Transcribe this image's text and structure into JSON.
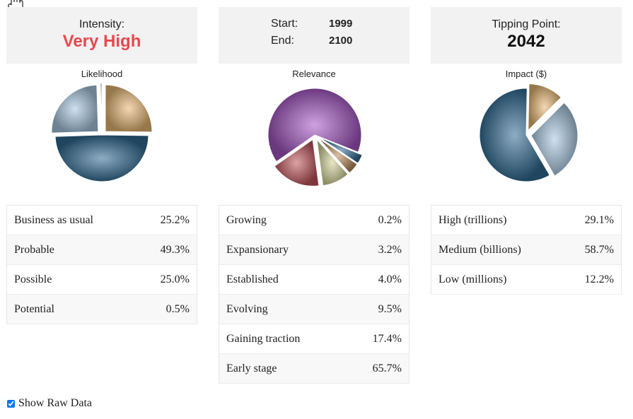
{
  "cards": {
    "intensity": {
      "label": "Intensity:",
      "value": "Very High",
      "value_color": "#e8484d"
    },
    "dates": {
      "start_label": "Start:",
      "start_value": "1999",
      "end_label": "End:",
      "end_value": "2100"
    },
    "tipping": {
      "label": "Tipping Point:",
      "value": "2042"
    }
  },
  "charts": {
    "likelihood": {
      "title": "Likelihood",
      "rows": [
        {
          "label": "Business as usual",
          "pct": "25.2%"
        },
        {
          "label": "Probable",
          "pct": "49.3%"
        },
        {
          "label": "Possible",
          "pct": "25.0%"
        },
        {
          "label": "Potential",
          "pct": "0.5%"
        }
      ]
    },
    "relevance": {
      "title": "Relevance",
      "rows": [
        {
          "label": "Growing",
          "pct": "0.2%"
        },
        {
          "label": "Expansionary",
          "pct": "3.2%"
        },
        {
          "label": "Established",
          "pct": "4.0%"
        },
        {
          "label": "Evolving",
          "pct": "9.5%"
        },
        {
          "label": "Gaining traction",
          "pct": "17.4%"
        },
        {
          "label": "Early stage",
          "pct": "65.7%"
        }
      ]
    },
    "impact": {
      "title": "Impact ($)",
      "rows": [
        {
          "label": "High (trillions)",
          "pct": "29.1%"
        },
        {
          "label": "Medium (billions)",
          "pct": "58.7%"
        },
        {
          "label": "Low (millions)",
          "pct": "12.2%"
        }
      ]
    }
  },
  "chart_data": [
    {
      "type": "pie",
      "title": "Likelihood",
      "categories": [
        "Business as usual",
        "Probable",
        "Possible",
        "Potential"
      ],
      "values": [
        25.2,
        49.3,
        25.0,
        0.5
      ],
      "colors": [
        "#e8b874",
        "#2f6a92",
        "#a8c8e2",
        "#c9a46a"
      ],
      "exploded": [
        "Business as usual",
        "Possible",
        "Potential"
      ]
    },
    {
      "type": "pie",
      "title": "Relevance",
      "categories": [
        "Growing",
        "Expansionary",
        "Established",
        "Evolving",
        "Gaining traction",
        "Early stage"
      ],
      "values": [
        0.2,
        3.2,
        4.0,
        9.5,
        17.4,
        65.7
      ],
      "colors": [
        "#7a7a7a",
        "#2f6a92",
        "#b98a5a",
        "#d4d49a",
        "#c0565c",
        "#a556c4"
      ],
      "exploded": [
        "Growing",
        "Expansionary",
        "Established",
        "Evolving",
        "Gaining traction"
      ]
    },
    {
      "type": "pie",
      "title": "Impact ($)",
      "categories": [
        "High (trillions)",
        "Medium (billions)",
        "Low (millions)"
      ],
      "values": [
        29.1,
        58.7,
        12.2
      ],
      "colors": [
        "#a8c8e2",
        "#2f6a92",
        "#e8b874"
      ],
      "exploded": [
        "High (trillions)",
        "Low (millions)"
      ]
    }
  ],
  "raw_toggle": {
    "label": "Show Raw Data",
    "checked": true
  },
  "icons": {
    "cursor": "hand-pointer-icon"
  }
}
